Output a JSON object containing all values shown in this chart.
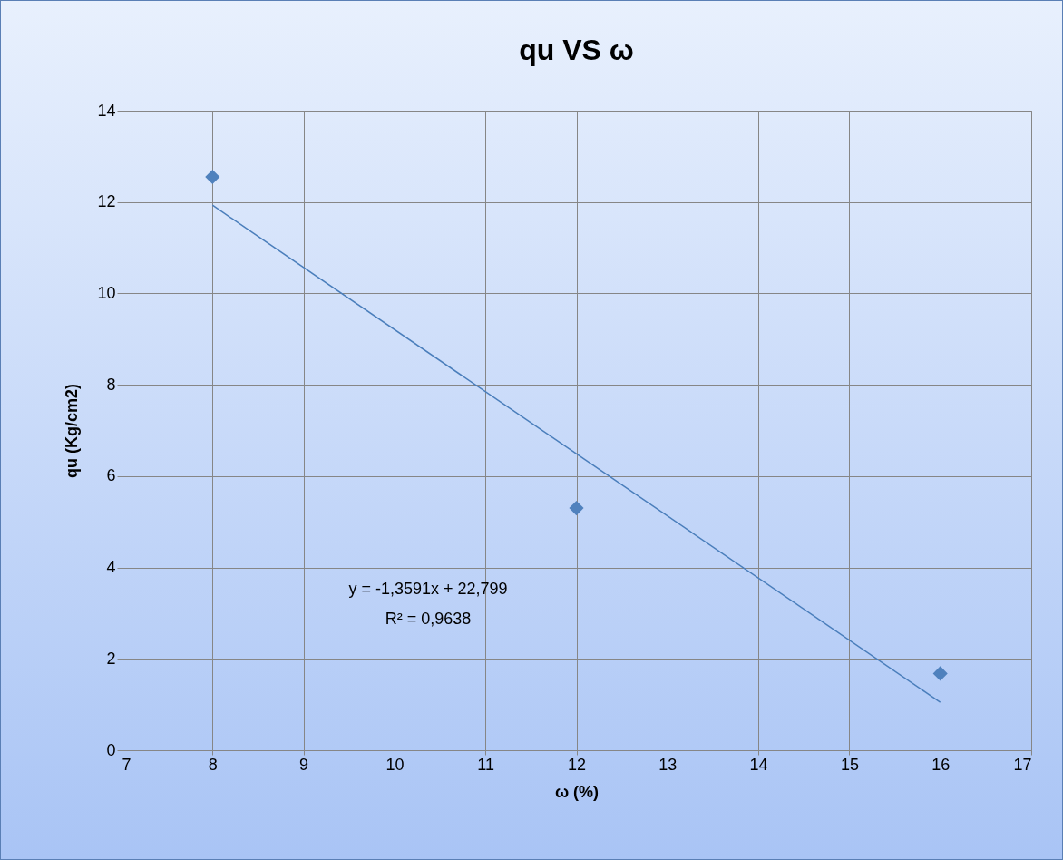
{
  "chart_data": {
    "type": "scatter",
    "title": "qu VS ω",
    "xlabel": "ω (%)",
    "ylabel": "qu (Kg/cm2)",
    "annotations": [
      "y = -1,3591x + 22,799",
      "R² = 0,9638"
    ],
    "series": [
      {
        "color": "#4f81bd",
        "x": [
          8,
          12,
          16
        ],
        "values": [
          12.55,
          5.3,
          1.68
        ],
        "marker": "diamond"
      },
      {
        "type": "line",
        "color": "#4a7ebb",
        "x": [
          8,
          16
        ],
        "values": [
          11.93,
          1.05
        ],
        "marker": "none"
      }
    ],
    "xlim": [
      7,
      17
    ],
    "xticks": [
      7,
      8,
      9,
      10,
      11,
      12,
      13,
      14,
      15,
      16,
      17
    ],
    "ylim": [
      0,
      14
    ],
    "yticks": [
      0,
      2,
      4,
      6,
      8,
      10,
      12,
      14
    ],
    "grid": true
  }
}
